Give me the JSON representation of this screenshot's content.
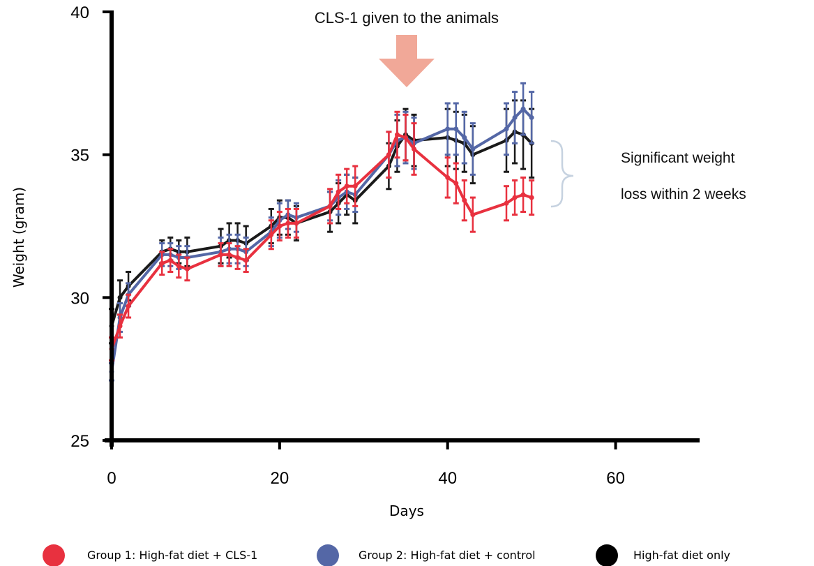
{
  "chart_data": {
    "type": "line",
    "title": "",
    "xlabel": "Days",
    "ylabel": "Weight (gram)",
    "xlim": [
      0,
      70
    ],
    "ylim": [
      25,
      40
    ],
    "xticks": [
      "0",
      "20",
      "40",
      "60"
    ],
    "yticks": [
      "25",
      "30",
      "35",
      "40"
    ],
    "error_bars": true,
    "legend_position": "bottom",
    "x": [
      0,
      1,
      2,
      6,
      7,
      8,
      9,
      13,
      14,
      15,
      16,
      19,
      20,
      21,
      22,
      26,
      27,
      28,
      29,
      33,
      34,
      35,
      36,
      40,
      41,
      42,
      43,
      47,
      48,
      49,
      50
    ],
    "series": [
      {
        "name": "High-fat diet only",
        "color": "#1a1a1a",
        "values": [
          29.0,
          30.0,
          30.4,
          31.6,
          31.7,
          31.6,
          31.6,
          31.8,
          32.0,
          32.0,
          31.9,
          32.5,
          32.8,
          32.8,
          32.6,
          33.0,
          33.3,
          33.6,
          33.4,
          34.6,
          35.3,
          35.7,
          35.5,
          35.6,
          35.5,
          35.4,
          35.0,
          35.5,
          35.8,
          35.7,
          35.4
        ],
        "errors": [
          0.6,
          0.6,
          0.5,
          0.4,
          0.4,
          0.4,
          0.5,
          0.6,
          0.6,
          0.6,
          0.6,
          0.6,
          0.6,
          0.6,
          0.6,
          0.7,
          0.7,
          0.7,
          0.8,
          0.8,
          0.9,
          0.9,
          0.9,
          1.0,
          1.0,
          1.0,
          1.0,
          1.1,
          1.1,
          1.2,
          1.2
        ]
      },
      {
        "name": "Group 2: High-fat diet + control",
        "color": "#5467a6",
        "values": [
          27.4,
          29.3,
          30.1,
          31.5,
          31.5,
          31.4,
          31.4,
          31.6,
          31.7,
          31.7,
          31.6,
          32.3,
          32.7,
          32.9,
          32.8,
          33.2,
          33.5,
          33.7,
          33.6,
          35.0,
          35.5,
          35.6,
          35.4,
          35.9,
          35.9,
          35.6,
          35.2,
          35.9,
          36.3,
          36.6,
          36.3
        ],
        "errors": [
          0.3,
          0.5,
          0.4,
          0.4,
          0.4,
          0.4,
          0.4,
          0.5,
          0.5,
          0.5,
          0.5,
          0.5,
          0.6,
          0.5,
          0.5,
          0.5,
          0.6,
          0.6,
          0.6,
          0.8,
          0.9,
          0.9,
          0.9,
          0.9,
          0.9,
          0.9,
          0.9,
          0.9,
          0.9,
          0.9,
          0.9
        ]
      },
      {
        "name": "Group 1: High-fat diet + CLS-1",
        "color": "#e8313f",
        "values": [
          28.2,
          29.0,
          29.7,
          31.2,
          31.3,
          31.1,
          31.0,
          31.5,
          31.5,
          31.4,
          31.3,
          32.2,
          32.5,
          32.6,
          32.6,
          33.2,
          33.7,
          33.9,
          33.9,
          35.0,
          35.7,
          35.6,
          35.2,
          34.2,
          34.0,
          33.4,
          32.9,
          33.3,
          33.5,
          33.6,
          33.5
        ],
        "errors": [
          0.4,
          0.4,
          0.4,
          0.4,
          0.4,
          0.4,
          0.4,
          0.4,
          0.4,
          0.4,
          0.4,
          0.5,
          0.5,
          0.5,
          0.5,
          0.6,
          0.6,
          0.6,
          0.7,
          0.8,
          0.8,
          0.8,
          0.9,
          0.7,
          0.7,
          0.7,
          0.6,
          0.6,
          0.6,
          0.6,
          0.6
        ]
      }
    ],
    "annotations": {
      "arrow_text": "CLS-1 given to the animals",
      "arrow_day": 35,
      "arrow_color": "#f1a898",
      "brace_text_line1": "Significant weight",
      "brace_text_line2": "loss within 2 weeks",
      "brace_color": "#c6d2e0",
      "brace_range": [
        33.2,
        35.5
      ]
    },
    "legend": [
      {
        "label": "Group 1: High-fat diet + CLS-1",
        "color": "#e8313f"
      },
      {
        "label": "Group 2: High-fat diet + control",
        "color": "#5467a6"
      },
      {
        "label": "High-fat diet only",
        "color": "#000000"
      }
    ]
  }
}
